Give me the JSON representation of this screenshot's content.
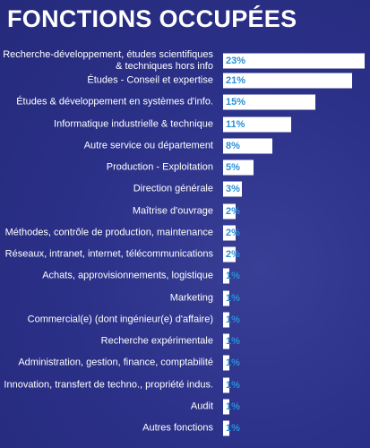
{
  "chart_data": {
    "type": "bar",
    "orientation": "horizontal",
    "title": "FONCTIONS OCCUPÉES",
    "color": "#ffffff",
    "label_color": "#2a8fd8",
    "categories": [
      "Recherche-développement, études scientifiques\n& techniques hors info",
      "Études - Conseil et expertise",
      "Études & développement en systèmes d'info.",
      "Informatique industrielle & technique",
      "Autre service ou département",
      "Production - Exploitation",
      "Direction générale",
      "Maîtrise d'ouvrage",
      "Méthodes, contrôle de production, maintenance",
      "Réseaux, intranet, internet, télécommunications",
      "Achats, approvisionnements, logistique",
      "Marketing",
      "Commercial(e) (dont ingénieur(e) d'affaire)",
      "Recherche expérimentale",
      "Administration, gestion, finance, comptabilité",
      "Innovation, transfert de techno., propriété indus.",
      "Audit",
      "Autres fonctions"
    ],
    "values": [
      23,
      21,
      15,
      11,
      8,
      5,
      3,
      2,
      2,
      2,
      1,
      1,
      1,
      1,
      1,
      1,
      1,
      1
    ],
    "value_labels": [
      "23%",
      "21%",
      "15%",
      "11%",
      "8%",
      "5%",
      "3%",
      "2%",
      "2%",
      "2%",
      "1%",
      "1%",
      "1%",
      "1%",
      "1%",
      "1%",
      "1%",
      "1%"
    ]
  }
}
